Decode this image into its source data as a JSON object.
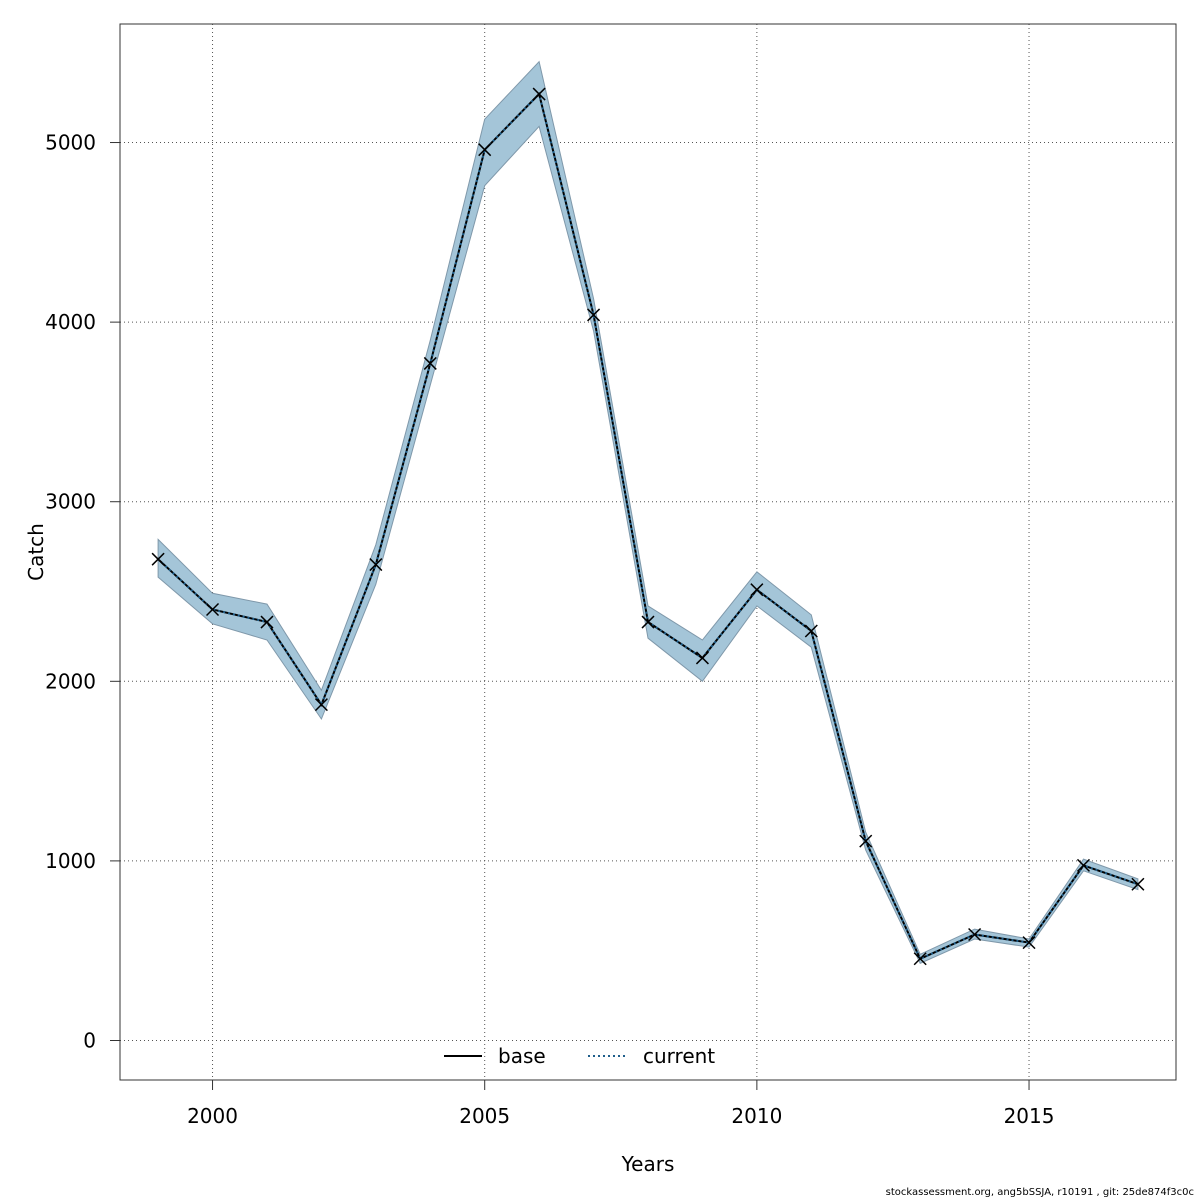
{
  "chart_data": {
    "type": "line",
    "title": "",
    "xlabel": "Years",
    "ylabel": "Catch",
    "xlim": [
      1998.3,
      2017.7
    ],
    "ylim": [
      -220,
      5660
    ],
    "x_ticks": [
      2000,
      2005,
      2010,
      2015
    ],
    "y_ticks": [
      0,
      1000,
      2000,
      3000,
      4000,
      5000
    ],
    "grid": true,
    "legend_position": "bottom-center",
    "band_color": "#a4c5d8",
    "x": [
      1999,
      2000,
      2001,
      2002,
      2003,
      2004,
      2005,
      2006,
      2007,
      2008,
      2009,
      2010,
      2011,
      2012,
      2013,
      2014,
      2015,
      2016,
      2017
    ],
    "series": [
      {
        "name": "base",
        "style": "solid",
        "color": "#000000",
        "values": [
          2680,
          2400,
          2330,
          1870,
          2650,
          3770,
          4960,
          5270,
          4040,
          2330,
          2130,
          2510,
          2280,
          1110,
          455,
          590,
          545,
          975,
          870
        ]
      },
      {
        "name": "current",
        "style": "dotted",
        "color": "#1f5f8b",
        "values": [
          2680,
          2400,
          2330,
          1870,
          2650,
          3770,
          4960,
          5270,
          4040,
          2330,
          2130,
          2510,
          2280,
          1110,
          455,
          590,
          545,
          975,
          870
        ],
        "band_upper": [
          2790,
          2490,
          2430,
          1950,
          2760,
          3900,
          5130,
          5450,
          4130,
          2420,
          2230,
          2610,
          2370,
          1160,
          480,
          620,
          565,
          1010,
          900
        ],
        "band_lower": [
          2580,
          2320,
          2230,
          1790,
          2540,
          3650,
          4760,
          5090,
          3950,
          2240,
          2000,
          2420,
          2190,
          1060,
          430,
          565,
          520,
          945,
          840
        ]
      }
    ]
  },
  "footer_text": "stockassessment.org, ang5bSSJA, r10191 , git: 25de874f3c0c"
}
